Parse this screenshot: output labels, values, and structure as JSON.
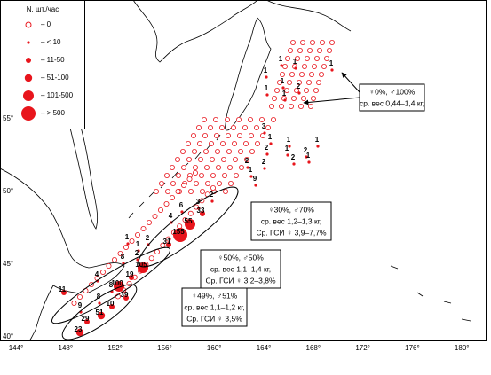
{
  "legend": {
    "title": "N, шт./час",
    "items": [
      "– 0",
      "– < 10",
      "– 11-50",
      "– 51-100",
      "– 101-500",
      "– > 500"
    ]
  },
  "lon_labels": [
    "144°",
    "148°",
    "152°",
    "156°",
    "160°",
    "164°",
    "168°",
    "172°",
    "176°",
    "180°"
  ],
  "lat_labels": [
    "40°",
    "45°",
    "50°",
    "55°"
  ],
  "station_labels": [
    1,
    1,
    1,
    1,
    1,
    2,
    1,
    1,
    3,
    1,
    1,
    1,
    2,
    1,
    2,
    2,
    1,
    2,
    2,
    1,
    9,
    2,
    3,
    6,
    4,
    33,
    55,
    155,
    2,
    31,
    1,
    1,
    8,
    2,
    105,
    19,
    4,
    100,
    8,
    11,
    8,
    39,
    9,
    10,
    51,
    29,
    23
  ],
  "annotations": [
    [
      "♀0%, ♂100%",
      "ср. вес 0,44–1,4 кг,"
    ],
    [
      "♀30%, ♂70%",
      "ср. вес 1,2–1,3 кг,",
      "Ср. ГСИ ♀ 3,9–7,7%"
    ],
    [
      "♀50%, ♂50%",
      "ср. вес 1,1–1,4 кг,",
      "Ср. ГСИ ♀ 3,2–3,8%"
    ],
    [
      "♀49%, ♂51%",
      "ср. вес 1,1–1,2 кг,",
      "Ср. ГСИ ♀ 3,5%"
    ]
  ]
}
